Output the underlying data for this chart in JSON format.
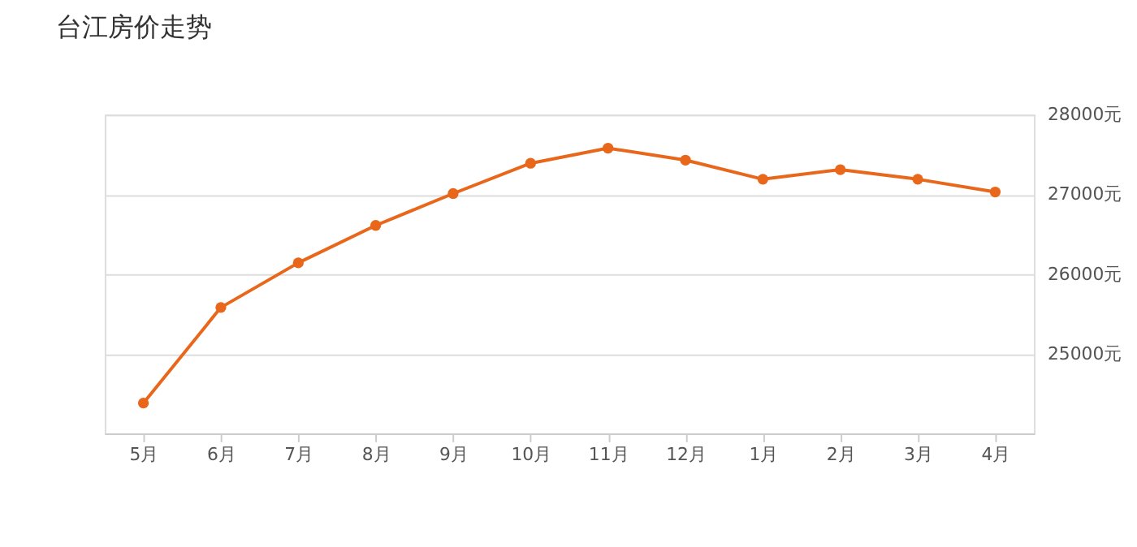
{
  "chart_data": {
    "type": "line",
    "title": "台江房价走势",
    "categories": [
      "5月",
      "6月",
      "7月",
      "8月",
      "9月",
      "10月",
      "11月",
      "12月",
      "1月",
      "2月",
      "3月",
      "4月"
    ],
    "values": [
      24380,
      25580,
      26140,
      26610,
      27010,
      27390,
      27580,
      27430,
      27190,
      27310,
      27190,
      27030
    ],
    "color": "#e8671b",
    "ylim": [
      24000,
      28000
    ],
    "yticks": [
      {
        "value": 25000,
        "label": "25000元"
      },
      {
        "value": 26000,
        "label": "26000元"
      },
      {
        "value": 27000,
        "label": "27000元"
      },
      {
        "value": 28000,
        "label": "28000元"
      }
    ],
    "grid": "y",
    "marker": "circle",
    "line_style": "solid"
  }
}
